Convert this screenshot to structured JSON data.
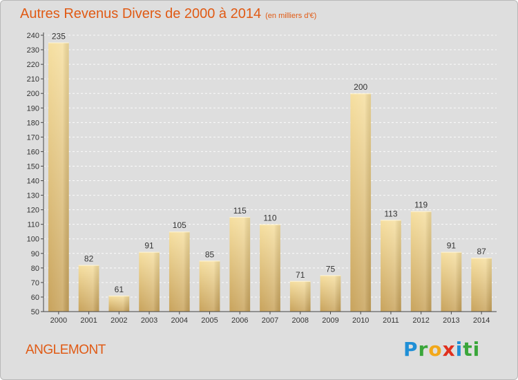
{
  "header": {
    "title": "Autres Revenus Divers de 2000 à 2014",
    "subtitle": "(en milliers d'€)"
  },
  "footer": {
    "commune": "ANGLEMONT",
    "logo_letters": [
      "P",
      "r",
      "o",
      "x",
      "i",
      "ti"
    ]
  },
  "colors": {
    "title": "#e05a14",
    "background": "#dedede",
    "plot_background": "#dedede",
    "bar_light": "#f5dc9a",
    "bar_dark": "#c9a55e",
    "axis": "#333333"
  },
  "chart_data": {
    "type": "bar",
    "title": "Autres Revenus Divers de 2000 à 2014",
    "subtitle": "(en milliers d'€)",
    "categories": [
      "2000",
      "2001",
      "2002",
      "2003",
      "2004",
      "2005",
      "2006",
      "2007",
      "2008",
      "2009",
      "2010",
      "2011",
      "2012",
      "2013",
      "2014"
    ],
    "values": [
      235,
      82,
      61,
      91,
      105,
      85,
      115,
      110,
      71,
      75,
      200,
      113,
      119,
      91,
      87
    ],
    "ylim": [
      50,
      240
    ],
    "yticks": [
      50,
      60,
      70,
      80,
      90,
      100,
      110,
      120,
      130,
      140,
      150,
      160,
      170,
      180,
      190,
      200,
      210,
      220,
      230,
      240
    ],
    "grid": true,
    "data_labels": true
  }
}
